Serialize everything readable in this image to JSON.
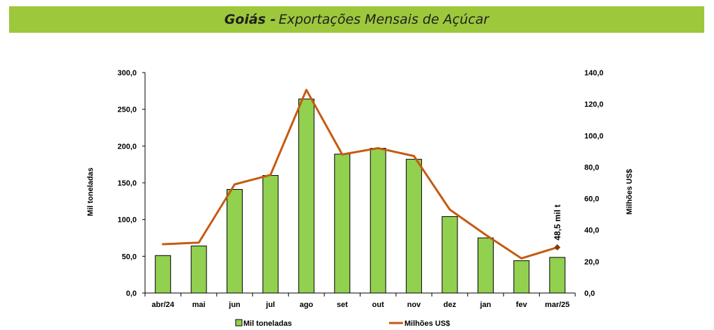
{
  "header": {
    "title_bold": "Goiás -",
    "title_rest": "Exportações Mensais de Açúcar",
    "background": "#9dc83c"
  },
  "chart_data": {
    "type": "bar",
    "categories": [
      "abr/24",
      "mai",
      "jun",
      "jul",
      "ago",
      "set",
      "out",
      "nov",
      "dez",
      "jan",
      "fev",
      "mar/25"
    ],
    "series": [
      {
        "name": "Mil toneladas",
        "type": "bar",
        "axis": "left",
        "color": "#92d050",
        "values": [
          51,
          64,
          141,
          160,
          264,
          189,
          197,
          182,
          104,
          75,
          44,
          48.5
        ]
      },
      {
        "name": "Milhões US$",
        "type": "line",
        "axis": "right",
        "color": "#c55a11",
        "values": [
          31,
          32,
          69,
          75,
          129,
          88,
          92,
          87,
          53,
          37,
          22,
          29
        ]
      }
    ],
    "ylabel": "Mil toneladas",
    "y2label": "Milhões US$",
    "ylim": [
      0,
      300
    ],
    "y2lim": [
      0,
      140
    ],
    "yticks": [
      "0,0",
      "50,0",
      "100,0",
      "150,0",
      "200,0",
      "250,0",
      "300,0"
    ],
    "y2ticks": [
      "0,0",
      "20,0",
      "40,0",
      "60,0",
      "80,0",
      "100,0",
      "120,0",
      "140,0"
    ],
    "annotation": "48,5 mil t",
    "legend_position": "bottom",
    "grid": false
  }
}
